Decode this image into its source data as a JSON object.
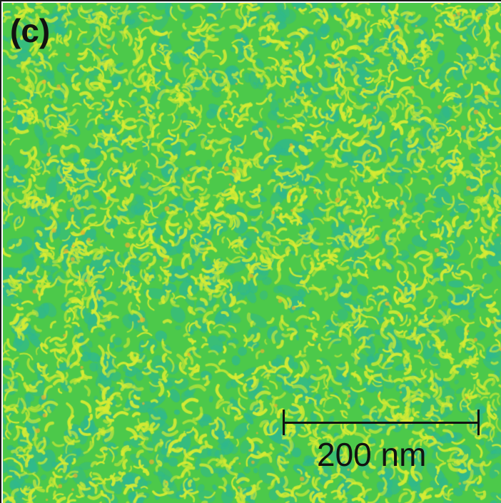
{
  "figure": {
    "panel_label": "(c)",
    "scale_bar_label": "200 nm",
    "colors": {
      "background_green": "#4cc94a",
      "texture_yellow": "#d8ec33",
      "texture_teal": "#2fb88f",
      "hotspot_orange": "#f0b030",
      "ink": "#111111"
    }
  }
}
